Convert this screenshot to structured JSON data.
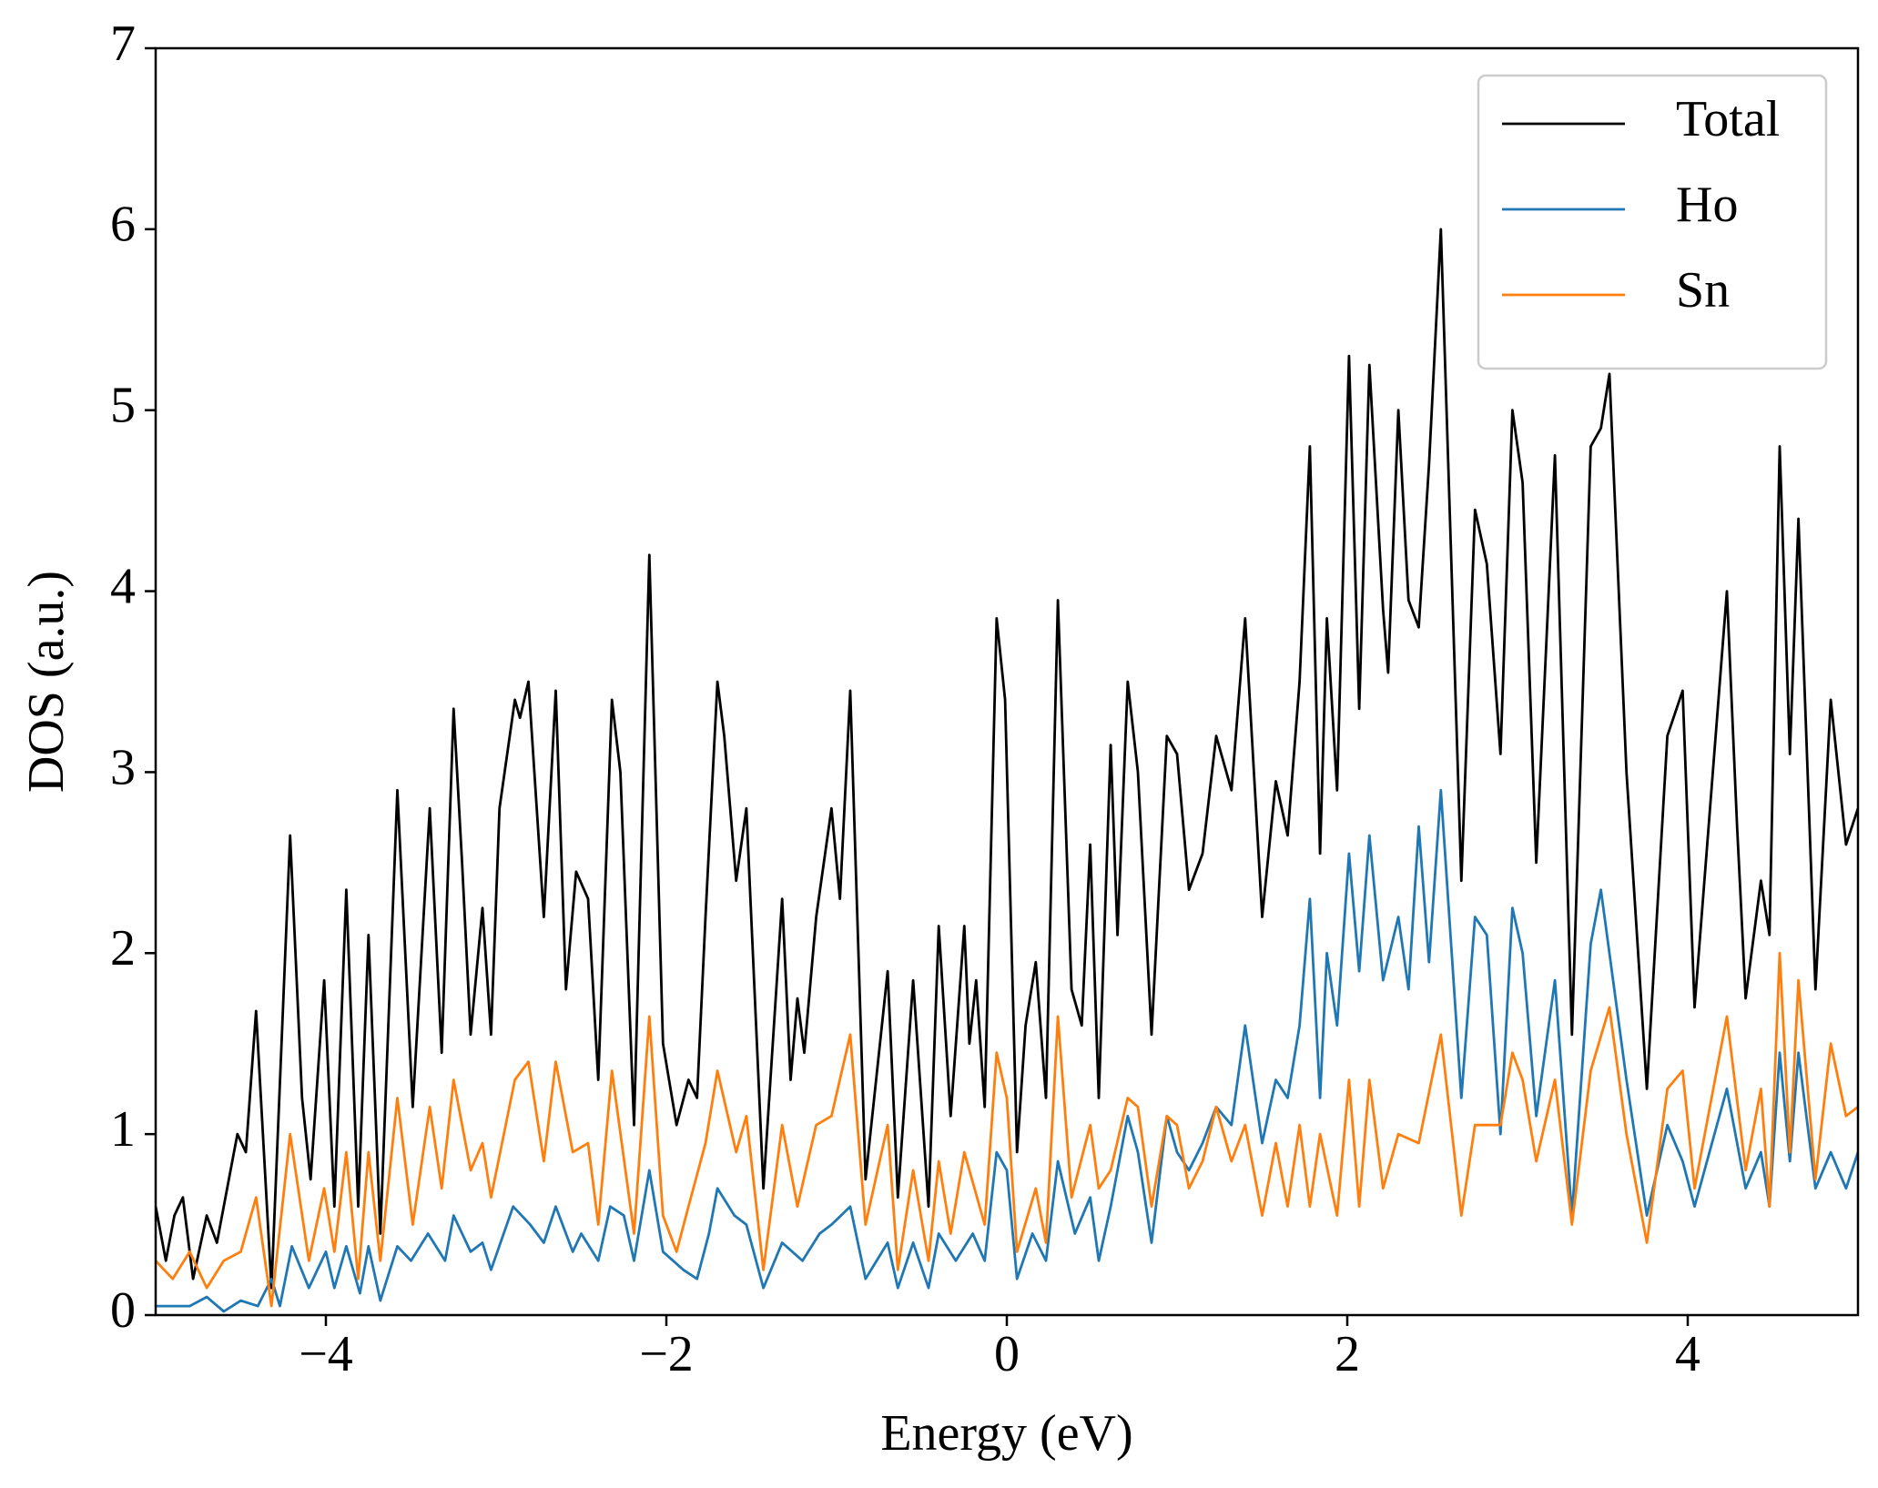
{
  "chart_data": {
    "type": "line",
    "xlabel": "Energy (eV)",
    "ylabel": "DOS (a.u.)",
    "xlim": [
      -5,
      5
    ],
    "ylim": [
      0,
      7
    ],
    "xticks": [
      {
        "value": -4,
        "label": "−4"
      },
      {
        "value": -2,
        "label": "−2"
      },
      0,
      2,
      4
    ],
    "yticks": [
      0,
      1,
      2,
      3,
      4,
      5,
      6,
      7
    ],
    "legend": "upper right",
    "series": [
      {
        "name": "Total",
        "color": "#000000",
        "x": [
          -5.0,
          -4.94,
          -4.89,
          -4.84,
          -4.78,
          -4.7,
          -4.64,
          -4.57,
          -4.52,
          -4.47,
          -4.41,
          -4.32,
          -4.21,
          -4.14,
          -4.09,
          -4.01,
          -3.95,
          -3.88,
          -3.81,
          -3.75,
          -3.68,
          -3.58,
          -3.49,
          -3.39,
          -3.32,
          -3.25,
          -3.2,
          -3.15,
          -3.08,
          -3.03,
          -2.98,
          -2.89,
          -2.86,
          -2.81,
          -2.72,
          -2.65,
          -2.59,
          -2.53,
          -2.46,
          -2.4,
          -2.32,
          -2.27,
          -2.19,
          -2.1,
          -2.02,
          -1.94,
          -1.87,
          -1.82,
          -1.77,
          -1.7,
          -1.66,
          -1.59,
          -1.53,
          -1.43,
          -1.32,
          -1.27,
          -1.23,
          -1.19,
          -1.12,
          -1.03,
          -0.98,
          -0.92,
          -0.83,
          -0.7,
          -0.64,
          -0.55,
          -0.46,
          -0.4,
          -0.33,
          -0.25,
          -0.22,
          -0.18,
          -0.13,
          -0.06,
          -0.01,
          0.06,
          0.11,
          0.17,
          0.23,
          0.3,
          0.38,
          0.44,
          0.49,
          0.54,
          0.61,
          0.65,
          0.71,
          0.77,
          0.85,
          0.94,
          1.0,
          1.07,
          1.15,
          1.23,
          1.32,
          1.4,
          1.5,
          1.58,
          1.65,
          1.72,
          1.78,
          1.84,
          1.88,
          1.94,
          2.01,
          2.07,
          2.13,
          2.21,
          2.24,
          2.3,
          2.36,
          2.42,
          2.48,
          2.55,
          2.67,
          2.75,
          2.82,
          2.9,
          2.97,
          3.03,
          3.11,
          3.22,
          3.32,
          3.43,
          3.49,
          3.54,
          3.64,
          3.76,
          3.88,
          3.97,
          4.04,
          4.23,
          4.29,
          4.34,
          4.43,
          4.48,
          4.54,
          4.6,
          4.65,
          4.75,
          4.84,
          4.93,
          5.0
        ],
        "values": [
          0.6,
          0.3,
          0.55,
          0.65,
          0.2,
          0.55,
          0.4,
          0.75,
          1.0,
          0.9,
          1.68,
          0.15,
          2.65,
          1.2,
          0.75,
          1.85,
          0.6,
          2.35,
          0.6,
          2.1,
          0.45,
          2.9,
          1.15,
          2.8,
          1.45,
          3.35,
          2.5,
          1.55,
          2.25,
          1.55,
          2.8,
          3.4,
          3.3,
          3.5,
          2.2,
          3.45,
          1.8,
          2.45,
          2.3,
          1.3,
          3.4,
          3.0,
          1.05,
          4.2,
          1.5,
          1.05,
          1.3,
          1.2,
          2.2,
          3.5,
          3.2,
          2.4,
          2.8,
          0.7,
          2.3,
          1.3,
          1.75,
          1.45,
          2.2,
          2.8,
          2.3,
          3.45,
          0.75,
          1.9,
          0.65,
          1.85,
          0.6,
          2.15,
          1.1,
          2.15,
          1.5,
          1.85,
          1.15,
          3.85,
          3.4,
          0.9,
          1.6,
          1.95,
          1.2,
          3.95,
          1.8,
          1.6,
          2.6,
          1.2,
          3.15,
          2.1,
          3.5,
          3.0,
          1.55,
          3.2,
          3.1,
          2.35,
          2.55,
          3.2,
          2.9,
          3.85,
          2.2,
          2.95,
          2.65,
          3.5,
          4.8,
          2.55,
          3.85,
          2.9,
          5.3,
          3.35,
          5.25,
          3.9,
          3.55,
          5.0,
          3.95,
          3.8,
          4.7,
          6.0,
          2.4,
          4.45,
          4.15,
          3.1,
          5.0,
          4.6,
          2.5,
          4.75,
          1.55,
          4.8,
          4.9,
          5.2,
          3.0,
          1.25,
          3.2,
          3.45,
          1.7,
          4.0,
          2.7,
          1.75,
          2.4,
          2.1,
          4.8,
          3.1,
          4.4,
          1.8,
          3.4,
          2.6,
          2.8
        ]
      },
      {
        "name": "Ho",
        "color": "#1f77b4",
        "x": [
          -5.0,
          -4.8,
          -4.7,
          -4.6,
          -4.5,
          -4.4,
          -4.32,
          -4.27,
          -4.2,
          -4.1,
          -4.0,
          -3.95,
          -3.88,
          -3.8,
          -3.75,
          -3.68,
          -3.58,
          -3.5,
          -3.4,
          -3.3,
          -3.25,
          -3.15,
          -3.08,
          -3.03,
          -2.9,
          -2.8,
          -2.72,
          -2.65,
          -2.55,
          -2.5,
          -2.4,
          -2.33,
          -2.25,
          -2.19,
          -2.1,
          -2.02,
          -1.9,
          -1.82,
          -1.75,
          -1.7,
          -1.6,
          -1.53,
          -1.43,
          -1.32,
          -1.2,
          -1.1,
          -1.03,
          -0.92,
          -0.83,
          -0.7,
          -0.64,
          -0.55,
          -0.46,
          -0.4,
          -0.3,
          -0.2,
          -0.13,
          -0.06,
          0.0,
          0.06,
          0.15,
          0.23,
          0.3,
          0.4,
          0.49,
          0.54,
          0.61,
          0.71,
          0.77,
          0.85,
          0.94,
          1.0,
          1.07,
          1.15,
          1.23,
          1.32,
          1.4,
          1.5,
          1.58,
          1.65,
          1.72,
          1.78,
          1.84,
          1.88,
          1.94,
          2.01,
          2.07,
          2.13,
          2.21,
          2.3,
          2.36,
          2.42,
          2.48,
          2.55,
          2.67,
          2.75,
          2.82,
          2.9,
          2.97,
          3.03,
          3.11,
          3.22,
          3.32,
          3.43,
          3.49,
          3.64,
          3.76,
          3.88,
          3.97,
          4.04,
          4.23,
          4.34,
          4.43,
          4.48,
          4.54,
          4.6,
          4.65,
          4.75,
          4.84,
          4.93,
          5.0
        ],
        "values": [
          0.05,
          0.05,
          0.1,
          0.02,
          0.08,
          0.05,
          0.2,
          0.05,
          0.38,
          0.15,
          0.35,
          0.15,
          0.38,
          0.12,
          0.38,
          0.08,
          0.38,
          0.3,
          0.45,
          0.3,
          0.55,
          0.35,
          0.4,
          0.25,
          0.6,
          0.5,
          0.4,
          0.6,
          0.35,
          0.45,
          0.3,
          0.6,
          0.55,
          0.3,
          0.8,
          0.35,
          0.25,
          0.2,
          0.45,
          0.7,
          0.55,
          0.5,
          0.15,
          0.4,
          0.3,
          0.45,
          0.5,
          0.6,
          0.2,
          0.4,
          0.15,
          0.4,
          0.15,
          0.45,
          0.3,
          0.45,
          0.3,
          0.9,
          0.8,
          0.2,
          0.45,
          0.3,
          0.85,
          0.45,
          0.65,
          0.3,
          0.6,
          1.1,
          0.9,
          0.4,
          1.1,
          0.9,
          0.8,
          0.95,
          1.15,
          1.05,
          1.6,
          0.95,
          1.3,
          1.2,
          1.6,
          2.3,
          1.2,
          2.0,
          1.6,
          2.55,
          1.9,
          2.65,
          1.85,
          2.2,
          1.8,
          2.7,
          1.95,
          2.9,
          1.2,
          2.2,
          2.1,
          1.0,
          2.25,
          2.0,
          1.1,
          1.85,
          0.55,
          2.05,
          2.35,
          1.3,
          0.55,
          1.05,
          0.85,
          0.6,
          1.25,
          0.7,
          0.9,
          0.6,
          1.45,
          0.85,
          1.45,
          0.7,
          0.9,
          0.7,
          0.9
        ]
      },
      {
        "name": "Sn",
        "color": "#ff7f0e",
        "x": [
          -5.0,
          -4.9,
          -4.8,
          -4.7,
          -4.6,
          -4.5,
          -4.41,
          -4.32,
          -4.21,
          -4.1,
          -4.01,
          -3.95,
          -3.88,
          -3.81,
          -3.75,
          -3.68,
          -3.58,
          -3.49,
          -3.39,
          -3.32,
          -3.25,
          -3.15,
          -3.08,
          -3.03,
          -2.89,
          -2.81,
          -2.72,
          -2.65,
          -2.55,
          -2.46,
          -2.4,
          -2.32,
          -2.19,
          -2.1,
          -2.02,
          -1.94,
          -1.87,
          -1.77,
          -1.7,
          -1.59,
          -1.53,
          -1.43,
          -1.32,
          -1.23,
          -1.12,
          -1.03,
          -0.92,
          -0.83,
          -0.7,
          -0.64,
          -0.55,
          -0.46,
          -0.4,
          -0.33,
          -0.25,
          -0.13,
          -0.06,
          0.0,
          0.06,
          0.17,
          0.23,
          0.3,
          0.38,
          0.49,
          0.54,
          0.61,
          0.71,
          0.77,
          0.85,
          0.94,
          1.0,
          1.07,
          1.15,
          1.23,
          1.32,
          1.4,
          1.5,
          1.58,
          1.65,
          1.72,
          1.78,
          1.84,
          1.94,
          2.01,
          2.07,
          2.13,
          2.21,
          2.3,
          2.42,
          2.55,
          2.67,
          2.75,
          2.9,
          2.97,
          3.03,
          3.11,
          3.22,
          3.32,
          3.43,
          3.54,
          3.64,
          3.76,
          3.88,
          3.97,
          4.04,
          4.23,
          4.34,
          4.43,
          4.48,
          4.54,
          4.6,
          4.65,
          4.75,
          4.84,
          4.93,
          5.0
        ],
        "values": [
          0.3,
          0.2,
          0.35,
          0.15,
          0.3,
          0.35,
          0.65,
          0.05,
          1.0,
          0.3,
          0.7,
          0.35,
          0.9,
          0.2,
          0.9,
          0.3,
          1.2,
          0.5,
          1.15,
          0.7,
          1.3,
          0.8,
          0.95,
          0.65,
          1.3,
          1.4,
          0.85,
          1.4,
          0.9,
          0.95,
          0.5,
          1.35,
          0.45,
          1.65,
          0.55,
          0.35,
          0.6,
          0.95,
          1.35,
          0.9,
          1.1,
          0.25,
          1.05,
          0.6,
          1.05,
          1.1,
          1.55,
          0.5,
          1.05,
          0.25,
          0.8,
          0.3,
          0.85,
          0.45,
          0.9,
          0.5,
          1.45,
          1.2,
          0.35,
          0.7,
          0.4,
          1.65,
          0.65,
          1.05,
          0.7,
          0.8,
          1.2,
          1.15,
          0.6,
          1.1,
          1.05,
          0.7,
          0.85,
          1.15,
          0.85,
          1.05,
          0.55,
          0.95,
          0.6,
          1.05,
          0.6,
          1.0,
          0.55,
          1.3,
          0.6,
          1.3,
          0.7,
          1.0,
          0.95,
          1.55,
          0.55,
          1.05,
          1.05,
          1.45,
          1.3,
          0.85,
          1.3,
          0.5,
          1.35,
          1.7,
          1.0,
          0.4,
          1.25,
          1.35,
          0.7,
          1.65,
          0.8,
          1.25,
          0.6,
          2.0,
          0.9,
          1.85,
          0.75,
          1.5,
          1.1,
          1.15
        ]
      }
    ]
  }
}
